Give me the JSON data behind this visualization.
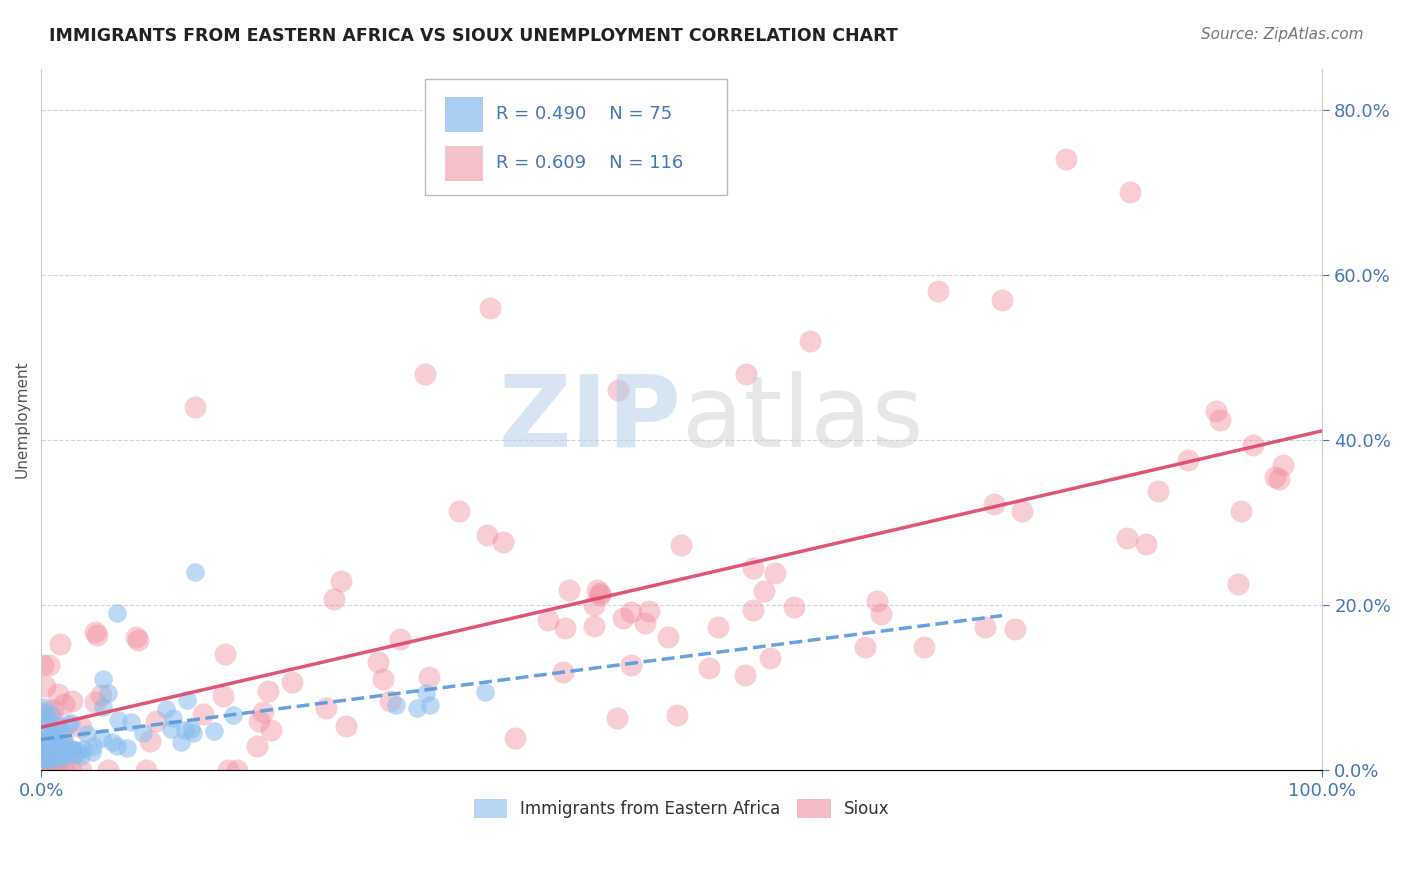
{
  "title": "IMMIGRANTS FROM EASTERN AFRICA VS SIOUX UNEMPLOYMENT CORRELATION CHART",
  "source": "Source: ZipAtlas.com",
  "ylabel": "Unemployment",
  "xlim": [
    0,
    1.0
  ],
  "ylim": [
    0,
    0.85
  ],
  "ytick_values": [
    0,
    0.2,
    0.4,
    0.6,
    0.8
  ],
  "ytick_labels": [
    "0.0%",
    "20.0%",
    "40.0%",
    "60.0%",
    "80.0%"
  ],
  "background_color": "#ffffff",
  "grid_color": "#c8c8d0",
  "legend_R_blue": "R = 0.490",
  "legend_N_blue": "N = 75",
  "legend_R_pink": "R = 0.609",
  "legend_N_pink": "N = 116",
  "blue_color": "#88bbee",
  "pink_color": "#f090a0",
  "blue_line_color": "#5599dd",
  "pink_line_color": "#dd4466",
  "title_color": "#222222",
  "tick_label_color": "#4477bb",
  "blue_seed": 42,
  "pink_seed": 77
}
